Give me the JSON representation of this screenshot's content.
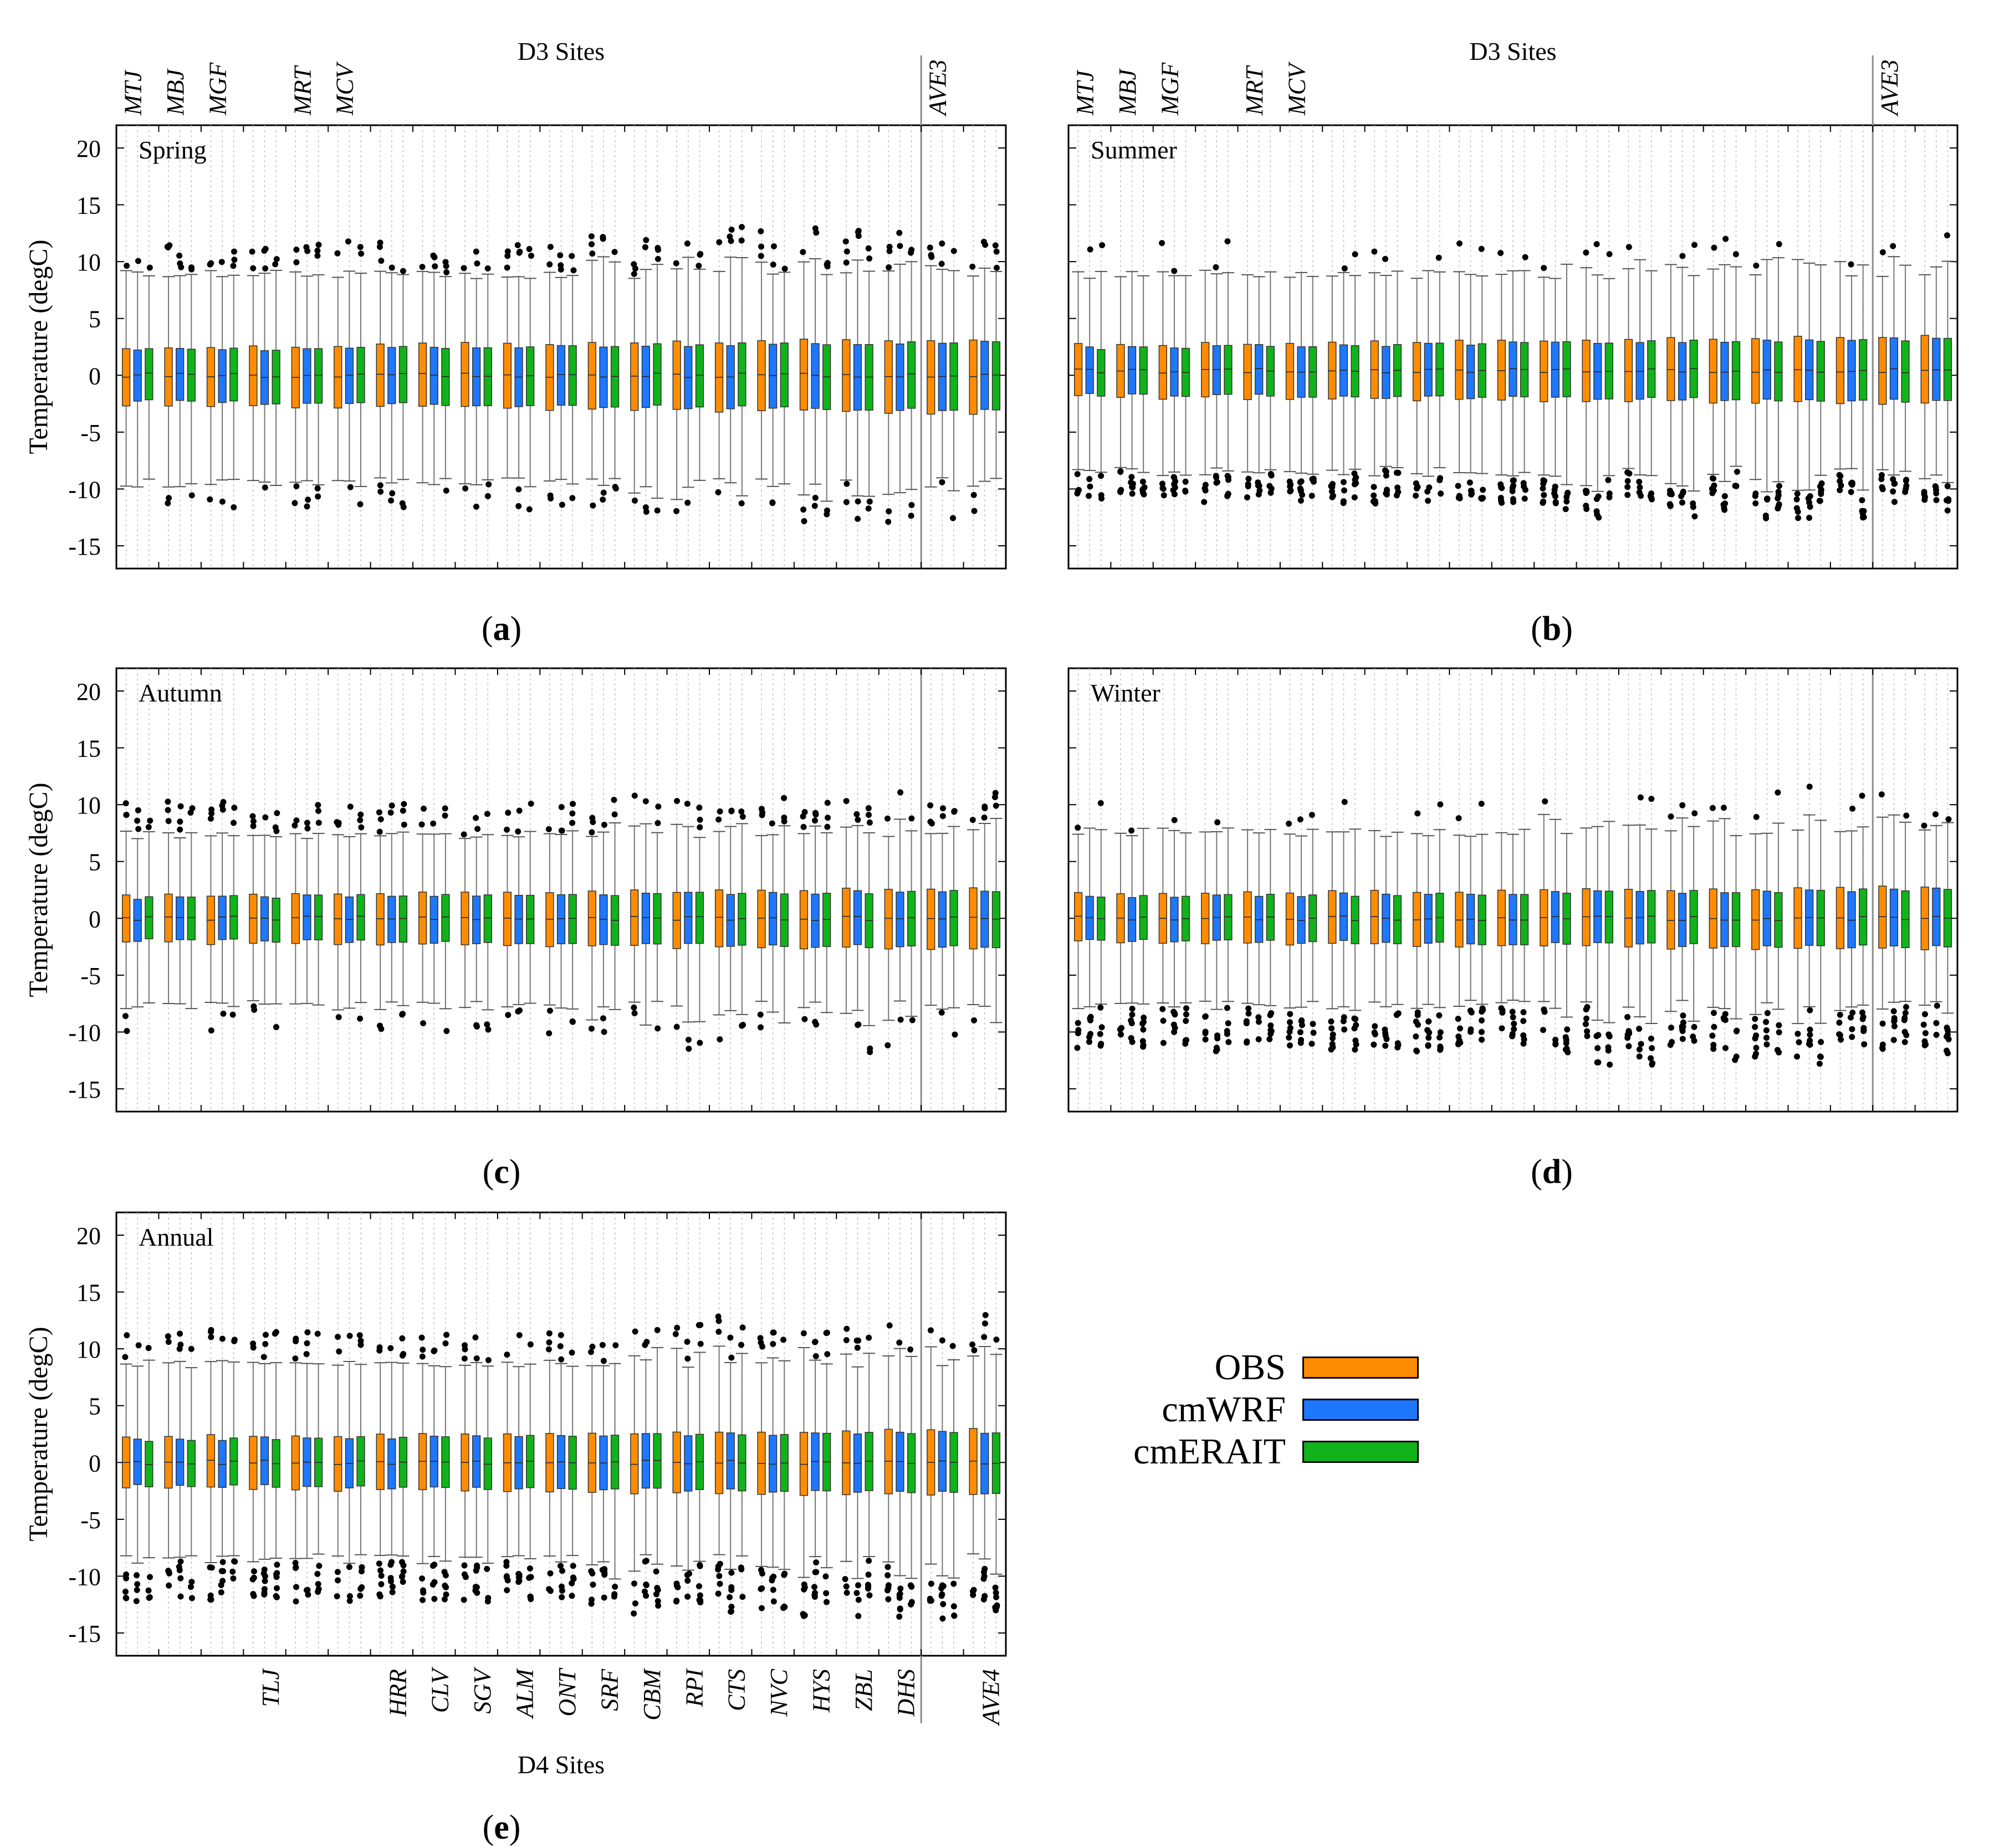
{
  "colors": {
    "OBS": "#ff8c00",
    "cmWRF": "#1e78ff",
    "cmERAIT": "#11b31a"
  },
  "d3_axis_title": "D3 Sites",
  "d4_axis_title": "D4 Sites",
  "d3_site_labels": [
    "MTJ",
    "MBJ",
    "MGF",
    "MRT",
    "MCV",
    "AVE3"
  ],
  "d4_site_labels": [
    "TLJ",
    "HRR",
    "CLV",
    "SGV",
    "ALM",
    "ONT",
    "SRF",
    "CBM",
    "RPI",
    "CTS",
    "NVC",
    "HYS",
    "ZBL",
    "DHS",
    "AVE4"
  ],
  "ylabel": "Temperature (degC)",
  "legend": [
    {
      "name": "OBS",
      "color": "#ff8c00"
    },
    {
      "name": "cmWRF",
      "color": "#1e78ff"
    },
    {
      "name": "cmERAIT",
      "color": "#11b31a"
    }
  ],
  "panel_letters": [
    "a",
    "b",
    "c",
    "d",
    "e"
  ],
  "chart_data": [
    {
      "type": "boxplot",
      "panel": "a",
      "title": "Spring",
      "ylim": [
        -17,
        22
      ],
      "yticks": [
        20,
        15,
        10,
        5,
        0,
        -5,
        -10,
        -15
      ],
      "series": [
        "OBS",
        "cmWRF",
        "cmERAIT"
      ],
      "groups": 21,
      "site_positions": {
        "MTJ": 1,
        "MBJ": 2,
        "MGF": 3,
        "MRT": 5,
        "MCV": 6,
        "AVE3": 20
      },
      "box_q1": -2.3,
      "box_q3": 2.2,
      "median": 0.0,
      "whisker_low": -9,
      "whisker_high": 8.5,
      "outliers": "scattered points near ±9 to ±13"
    },
    {
      "type": "boxplot",
      "panel": "b",
      "title": "Summer",
      "ylim": [
        -17,
        22
      ],
      "yticks": [
        20,
        15,
        10,
        5,
        0,
        -5,
        -10,
        -15
      ],
      "series": [
        "OBS",
        "cmWRF",
        "cmERAIT"
      ],
      "groups": 21,
      "site_positions": {
        "MTJ": 1,
        "MBJ": 2,
        "MGF": 3,
        "MRT": 5,
        "MCV": 6,
        "AVE3": 20
      },
      "box_q1": -1.7,
      "box_q3": 2.4,
      "median": 0.4,
      "whisker_low": -8,
      "whisker_high": 8.5,
      "outliers": "dense points between -7 and -12"
    },
    {
      "type": "boxplot",
      "panel": "c",
      "title": "Autumn",
      "ylim": [
        -17,
        22
      ],
      "yticks": [
        20,
        15,
        10,
        5,
        0,
        -5,
        -10,
        -15
      ],
      "series": [
        "OBS",
        "cmWRF",
        "cmERAIT"
      ],
      "groups": 21,
      "box_q1": -1.9,
      "box_q3": 1.8,
      "median": 0.0,
      "whisker_low": -7.2,
      "whisker_high": 7.0,
      "outliers": "points near ±7 to ±12"
    },
    {
      "type": "boxplot",
      "panel": "d",
      "title": "Winter",
      "ylim": [
        -17,
        22
      ],
      "yticks": [
        20,
        15,
        10,
        5,
        0,
        -5,
        -10,
        -15
      ],
      "series": [
        "OBS",
        "cmWRF",
        "cmERAIT"
      ],
      "groups": 21,
      "box_q1": -1.9,
      "box_q3": 1.9,
      "median": 0.0,
      "whisker_low": -7.2,
      "whisker_high": 7.2,
      "outliers": "dense points between -7 and -14"
    },
    {
      "type": "boxplot",
      "panel": "e",
      "title": "Annual",
      "ylim": [
        -17,
        22
      ],
      "yticks": [
        20,
        15,
        10,
        5,
        0,
        -5,
        -10,
        -15
      ],
      "series": [
        "OBS",
        "cmWRF",
        "cmERAIT"
      ],
      "groups": 21,
      "site_positions": {
        "TLJ": 4,
        "HRR": 7,
        "CLV": 8,
        "SGV": 9,
        "ALM": 10,
        "ONT": 11,
        "SRF": 12,
        "CBM": 13,
        "RPI": 14,
        "CTS": 15,
        "NVC": 16,
        "HYS": 17,
        "ZBL": 18,
        "DHS": 19,
        "AVE4": 21
      },
      "box_q1": -2.0,
      "box_q3": 2.0,
      "median": 0.0,
      "whisker_low": -8,
      "whisker_high": 8.3,
      "outliers": "dense points near ±8 to ±14"
    }
  ]
}
